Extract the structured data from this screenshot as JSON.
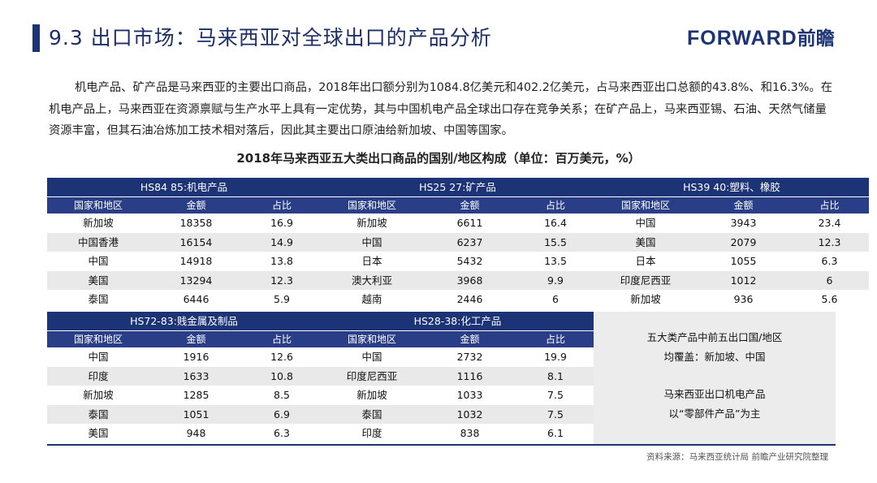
{
  "header": {
    "title": "9.3 出口市场：马来西亚对全球出口的产品分析",
    "logo_text": "FORWARD",
    "logo_cn": "前瞻"
  },
  "intro": "机电产品、矿产品是马来西亚的主要出口商品，2018年出口额分别为1084.8亿美元和402.2亿美元，占马来西亚出口总额的43.8%、和16.3%。在机电产品上，马来西亚在资源禀赋与生产水平上具有一定优势，其与中国机电产品全球出口存在竞争关系；在矿产品上，马来西亚锡、石油、天然气储量资源丰富，但其石油冶炼加工技术相对落后，因此其主要出口原油给新加坡、中国等国家。",
  "table_title": "2018年马来西亚五大类出口商品的国别/地区构成（单位：百万美元，%）",
  "columns": [
    "国家和地区",
    "金额",
    "占比"
  ],
  "sections": [
    {
      "header": "HS84 85:机电产品",
      "rows": [
        [
          "新加坡",
          "18358",
          "16.9"
        ],
        [
          "中国香港",
          "16154",
          "14.9"
        ],
        [
          "中国",
          "14918",
          "13.8"
        ],
        [
          "美国",
          "13294",
          "12.3"
        ],
        [
          "泰国",
          "6446",
          "5.9"
        ]
      ]
    },
    {
      "header": "HS25 27:矿产品",
      "rows": [
        [
          "新加坡",
          "6611",
          "16.4"
        ],
        [
          "中国",
          "6237",
          "15.5"
        ],
        [
          "日本",
          "5432",
          "13.5"
        ],
        [
          "澳大利亚",
          "3968",
          "9.9"
        ],
        [
          "越南",
          "2446",
          "6"
        ]
      ]
    },
    {
      "header": "HS39 40:塑料、橡胶",
      "rows": [
        [
          "中国",
          "3943",
          "23.4"
        ],
        [
          "美国",
          "2079",
          "12.3"
        ],
        [
          "日本",
          "1055",
          "6.3"
        ],
        [
          "印度尼西亚",
          "1012",
          "6"
        ],
        [
          "新加坡",
          "936",
          "5.6"
        ]
      ]
    },
    {
      "header": "HS72-83:贱金属及制品",
      "rows": [
        [
          "中国",
          "1916",
          "12.6"
        ],
        [
          "印度",
          "1633",
          "10.8"
        ],
        [
          "新加坡",
          "1285",
          "8.5"
        ],
        [
          "泰国",
          "1051",
          "6.9"
        ],
        [
          "美国",
          "948",
          "6.3"
        ]
      ]
    },
    {
      "header": "HS28-38:化工产品",
      "rows": [
        [
          "中国",
          "2732",
          "19.9"
        ],
        [
          "印度尼西亚",
          "1116",
          "8.1"
        ],
        [
          "新加坡",
          "1033",
          "7.5"
        ],
        [
          "泰国",
          "1032",
          "7.5"
        ],
        [
          "印度",
          "838",
          "6.1"
        ]
      ]
    }
  ],
  "note": {
    "line1": "五大类产品中前五出口国/地区",
    "line2": "均覆盖：新加坡、中国",
    "line3": "马来西亚出口机电产品",
    "line4": "以“零部件产品”为主"
  },
  "source": "资料来源：马来西亚统计局  前瞻产业研究院整理"
}
